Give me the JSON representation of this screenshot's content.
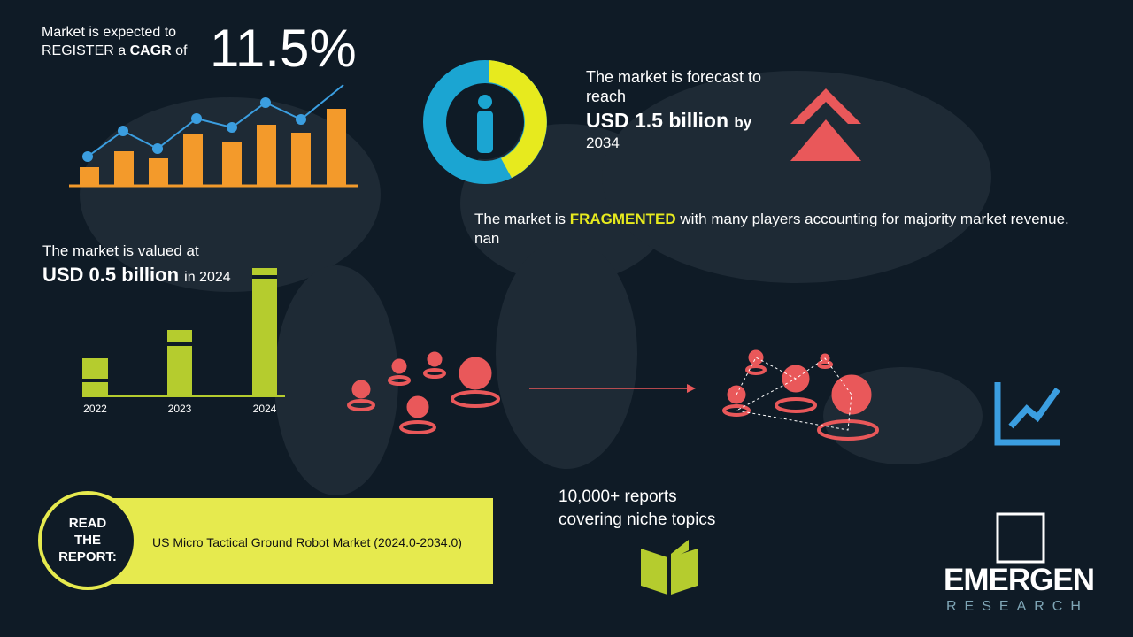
{
  "cagr": {
    "line1": "Market is expected to",
    "register": "REGISTER a",
    "cagr_word": "CAGR",
    "of": "of",
    "value": "11.5%"
  },
  "forecast": {
    "line1": "The market is forecast to reach",
    "amount": "USD 1.5 billion",
    "by": "by",
    "year": "2034"
  },
  "fragmented": {
    "prefix": "The market is",
    "highlight": "FRAGMENTED",
    "suffix": "with many players accounting for majority market revenue. nan"
  },
  "valued": {
    "line1": "The market is valued at",
    "amount": "USD 0.5 billion",
    "year": "in 2024",
    "years": [
      "2022",
      "2023",
      "2024"
    ]
  },
  "reports": {
    "line1": "10,000+ reports",
    "line2": "covering niche topics"
  },
  "read": {
    "label": "READ THE REPORT:",
    "title": "US Micro Tactical Ground Robot Market (2024.0-2034.0)"
  },
  "logo": {
    "name": "EMERGEN",
    "sub": "RESEARCH"
  }
}
